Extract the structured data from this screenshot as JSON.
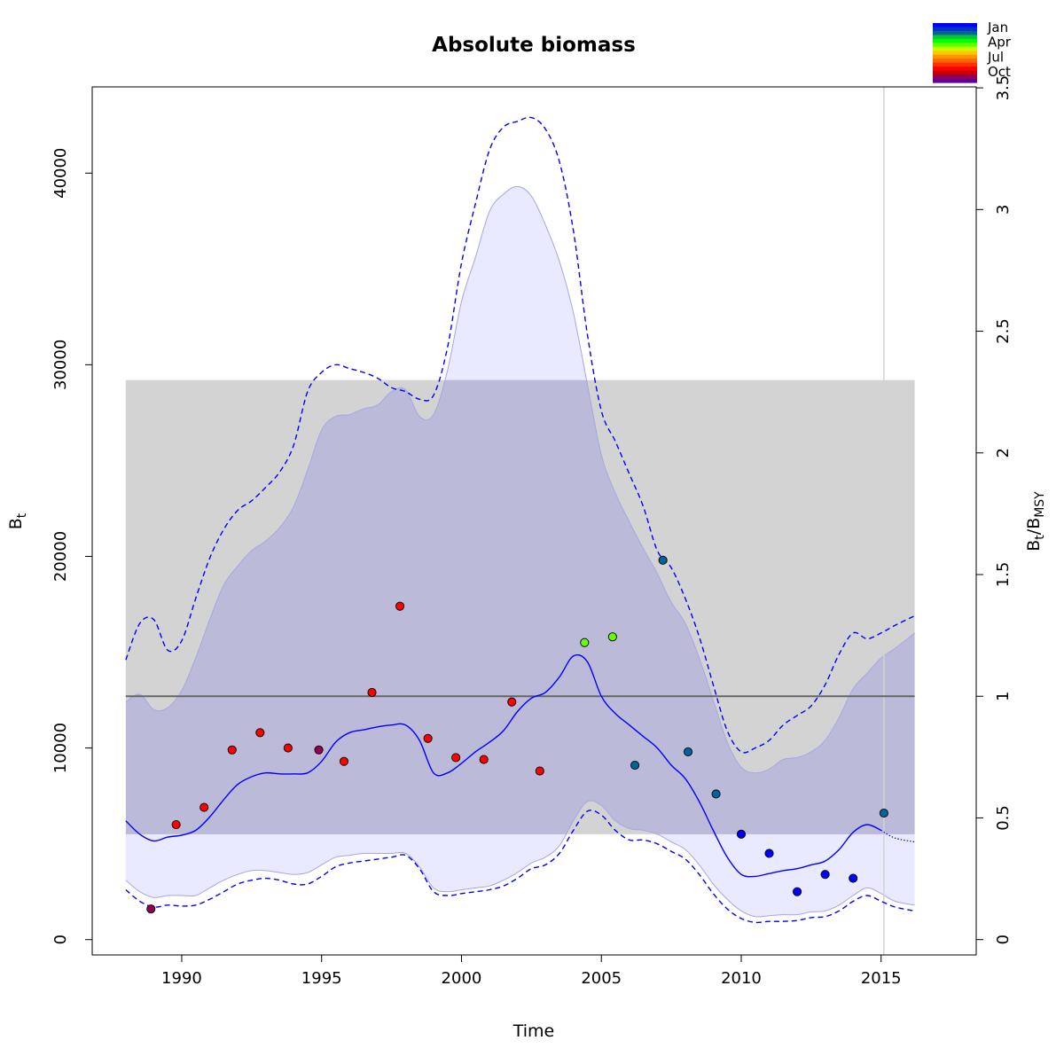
{
  "chart_data": {
    "type": "line",
    "title": "Absolute biomass",
    "xlabel": "Time",
    "ylabel": "B",
    "ylabel_sub": "t",
    "y2label": "B",
    "y2label_sub": "t/MSY",
    "y2label_sub_a": "t",
    "y2label_mid": "/B",
    "y2label_sub_b": "MSY",
    "xlim": [
      1986.8,
      2018.4
    ],
    "ylim": [
      -800,
      44500
    ],
    "x_ticks": [
      1990,
      1995,
      2000,
      2005,
      2010,
      2015
    ],
    "x_tick_labels": [
      "1990",
      "1995",
      "2000",
      "2005",
      "2010",
      "2015"
    ],
    "y_ticks": [
      0,
      10000,
      20000,
      30000,
      40000
    ],
    "y_tick_labels": [
      "0",
      "10000",
      "20000",
      "30000",
      "40000"
    ],
    "y2_ticks": [
      0,
      0.5,
      1,
      1.5,
      2,
      2.5,
      3,
      3.5
    ],
    "y2_tick_labels": [
      "0",
      "0.5",
      "1",
      "1.5",
      "2",
      "2.5",
      "3",
      "3.5"
    ],
    "bmsy": 12700,
    "bmsy_ci": [
      5500,
      29200
    ],
    "bmsy_band_x": [
      1988,
      2016.2
    ],
    "vertical_line_x": 2015.1,
    "legend": {
      "position": "top-right",
      "labels": [
        "Jan",
        "Apr",
        "Jul",
        "Oct"
      ],
      "colors": [
        "#0000FF",
        "#0032C8",
        "#006496",
        "#00C832",
        "#00FF00",
        "#64FF00",
        "#C8FF00",
        "#FFC800",
        "#FF9600",
        "#FF6400",
        "#FF3200",
        "#FF0000",
        "#C80000",
        "#960050",
        "#640096"
      ]
    },
    "colors": {
      "estimate": "#0000FF",
      "ci_fill": "#E2E2FF",
      "ci_border": "#A6A6E8",
      "overlap_fill": "#BBBBD9",
      "band_fill": "#D3D3D3",
      "ref_line": "#666666",
      "vline": "#D3D3D3"
    },
    "series": [
      {
        "name": "estimate",
        "x": [
          1988,
          1988.5,
          1989,
          1989.5,
          1990,
          1990.5,
          1991,
          1991.5,
          1992,
          1992.5,
          1993,
          1993.5,
          1994,
          1994.5,
          1995,
          1995.5,
          1996,
          1996.5,
          1997,
          1997.5,
          1998,
          1998.5,
          1999,
          1999.5,
          2000,
          2000.5,
          2001,
          2001.5,
          2002,
          2002.5,
          2003,
          2003.5,
          2004,
          2004.5,
          2005,
          2005.5,
          2006,
          2006.5,
          2007,
          2007.5,
          2008,
          2008.5,
          2009,
          2009.5,
          2010,
          2010.5,
          2011,
          2011.5,
          2012,
          2012.5,
          2013,
          2013.5,
          2014,
          2014.5,
          2015
        ],
        "y": [
          6200,
          5500,
          5150,
          5350,
          5450,
          5700,
          6400,
          7300,
          8100,
          8500,
          8700,
          8650,
          8650,
          8700,
          9300,
          10300,
          10800,
          10950,
          11100,
          11200,
          11200,
          10400,
          8700,
          8700,
          9200,
          9800,
          10300,
          10900,
          11900,
          12600,
          12900,
          13700,
          14800,
          14500,
          12700,
          11800,
          11200,
          10600,
          10000,
          9100,
          8400,
          7200,
          5700,
          4300,
          3400,
          3300,
          3450,
          3600,
          3700,
          3900,
          4100,
          4700,
          5600,
          6000,
          5700
        ]
      },
      {
        "name": "forecast",
        "x": [
          2015,
          2015.5,
          2016.2
        ],
        "y": [
          5700,
          5300,
          5100
        ]
      },
      {
        "name": "upper",
        "x": [
          1988,
          1988.5,
          1989,
          1989.5,
          1990,
          1990.5,
          1991,
          1991.5,
          1992,
          1992.5,
          1993,
          1993.5,
          1994,
          1994.5,
          1995,
          1995.5,
          1996,
          1996.5,
          1997,
          1997.5,
          1998,
          1998.5,
          1999,
          1999.5,
          2000,
          2000.5,
          2001,
          2001.5,
          2002,
          2002.5,
          2003,
          2003.5,
          2004,
          2004.5,
          2005,
          2005.5,
          2006,
          2006.5,
          2007,
          2007.5,
          2008,
          2008.5,
          2009,
          2009.5,
          2010,
          2010.5,
          2011,
          2011.5,
          2012,
          2012.5,
          2013,
          2013.5,
          2014,
          2014.5,
          2015,
          2015.5,
          2016.2
        ],
        "y": [
          14600,
          16500,
          16700,
          15100,
          15600,
          17800,
          19900,
          21400,
          22400,
          22900,
          23600,
          24400,
          25800,
          28600,
          29600,
          30000,
          29800,
          29600,
          29300,
          28800,
          28600,
          28200,
          28400,
          30900,
          35300,
          38400,
          41200,
          42400,
          42700,
          42900,
          42300,
          40600,
          37000,
          31600,
          27600,
          26000,
          24300,
          22600,
          20300,
          19400,
          17800,
          15800,
          13300,
          10900,
          9800,
          10000,
          10400,
          11200,
          11700,
          12200,
          13300,
          14900,
          16000,
          15700,
          16000,
          16400,
          16900
        ]
      },
      {
        "name": "lower",
        "x": [
          1988,
          1988.5,
          1989,
          1989.5,
          1990,
          1990.5,
          1991,
          1991.5,
          1992,
          1992.5,
          1993,
          1993.5,
          1994,
          1994.5,
          1995,
          1995.5,
          1996,
          1996.5,
          1997,
          1997.5,
          1998,
          1998.5,
          1999,
          1999.5,
          2000,
          2000.5,
          2001,
          2001.5,
          2002,
          2002.5,
          2003,
          2003.5,
          2004,
          2004.5,
          2005,
          2005.5,
          2006,
          2006.5,
          2007,
          2007.5,
          2008,
          2008.5,
          2009,
          2009.5,
          2010,
          2010.5,
          2011,
          2011.5,
          2012,
          2012.5,
          2013,
          2013.5,
          2014,
          2014.5,
          2015,
          2015.5,
          2016.2
        ],
        "y": [
          2600,
          2000,
          1700,
          1800,
          1750,
          1800,
          2100,
          2500,
          2900,
          3100,
          3200,
          3100,
          2900,
          2900,
          3300,
          3800,
          4000,
          4100,
          4200,
          4300,
          4400,
          3700,
          2500,
          2300,
          2400,
          2500,
          2600,
          2800,
          3200,
          3700,
          3900,
          4500,
          5700,
          6700,
          6500,
          5700,
          5200,
          5200,
          5000,
          4600,
          4200,
          3400,
          2400,
          1600,
          1100,
          900,
          950,
          950,
          1000,
          1150,
          1200,
          1500,
          2000,
          2300,
          2000,
          1700,
          1500
        ]
      },
      {
        "name": "ci_fill_upper",
        "x": [
          1988,
          1988.5,
          1989,
          1989.5,
          1990,
          1990.5,
          1991,
          1991.5,
          1992,
          1992.5,
          1993,
          1993.5,
          1994,
          1994.5,
          1995,
          1995.5,
          1996,
          1996.5,
          1997,
          1997.5,
          1998,
          1998.5,
          1999,
          1999.5,
          2000,
          2000.5,
          2001,
          2001.5,
          2002,
          2002.5,
          2003,
          2003.5,
          2004,
          2004.5,
          2005,
          2005.5,
          2006,
          2006.5,
          2007,
          2007.5,
          2008,
          2008.5,
          2009,
          2009.5,
          2010,
          2010.5,
          2011,
          2011.5,
          2012,
          2012.5,
          2013,
          2013.5,
          2014,
          2014.5,
          2015,
          2015.5,
          2016.2
        ],
        "y": [
          12400,
          12800,
          12000,
          12100,
          13000,
          14700,
          16700,
          18500,
          19500,
          20300,
          20800,
          21500,
          22600,
          24500,
          26600,
          27300,
          27400,
          27700,
          27900,
          28600,
          28700,
          27300,
          27400,
          29700,
          33300,
          35600,
          38000,
          38900,
          39300,
          38800,
          37300,
          35400,
          32700,
          29000,
          25300,
          23300,
          21800,
          20400,
          19100,
          17600,
          16500,
          14700,
          12500,
          10300,
          9000,
          8700,
          8900,
          9400,
          9500,
          9800,
          10400,
          11600,
          13100,
          13900,
          14700,
          15200,
          16000
        ]
      },
      {
        "name": "ci_fill_lower",
        "x": [
          1988,
          1988.5,
          1989,
          1989.5,
          1990,
          1990.5,
          1991,
          1991.5,
          1992,
          1992.5,
          1993,
          1993.5,
          1994,
          1994.5,
          1995,
          1995.5,
          1996,
          1996.5,
          1997,
          1997.5,
          1998,
          1998.5,
          1999,
          1999.5,
          2000,
          2000.5,
          2001,
          2001.5,
          2002,
          2002.5,
          2003,
          2003.5,
          2004,
          2004.5,
          2005,
          2005.5,
          2006,
          2006.5,
          2007,
          2007.5,
          2008,
          2008.5,
          2009,
          2009.5,
          2010,
          2010.5,
          2011,
          2011.5,
          2012,
          2012.5,
          2013,
          2013.5,
          2014,
          2014.5,
          2015,
          2015.5,
          2016.2
        ],
        "y": [
          3100,
          2500,
          2200,
          2300,
          2300,
          2300,
          2700,
          3100,
          3400,
          3600,
          3600,
          3500,
          3400,
          3500,
          3900,
          4300,
          4400,
          4500,
          4500,
          4500,
          4500,
          3800,
          2700,
          2500,
          2600,
          2700,
          2800,
          3100,
          3500,
          4000,
          4300,
          4900,
          6200,
          7200,
          7000,
          6200,
          5800,
          5700,
          5500,
          5100,
          4700,
          3900,
          2900,
          2100,
          1500,
          1200,
          1250,
          1300,
          1300,
          1450,
          1500,
          1800,
          2300,
          2700,
          2400,
          2000,
          1800
        ]
      }
    ],
    "observations": {
      "x": [
        1988.9,
        1989.8,
        1990.8,
        1991.8,
        1992.8,
        1993.8,
        1994.9,
        1995.8,
        1996.8,
        1997.8,
        1998.8,
        1999.8,
        2000.8,
        2001.8,
        2002.8,
        2004.4,
        2005.4,
        2006.2,
        2007.2,
        2008.1,
        2009.1,
        2010.0,
        2011.0,
        2012.0,
        2013.0,
        2014.0,
        2015.1
      ],
      "y": [
        1600,
        6000,
        6900,
        9900,
        10800,
        10000,
        9900,
        9300,
        12900,
        17400,
        10500,
        9500,
        9400,
        12400,
        8800,
        15500,
        15800,
        9100,
        19800,
        9800,
        7600,
        5500,
        4500,
        2500,
        3400,
        3200,
        6600
      ],
      "colors": [
        "#960050",
        "#FF0000",
        "#FF0000",
        "#FF0000",
        "#FF0000",
        "#FF0000",
        "#960050",
        "#FF0000",
        "#FF0000",
        "#FF0000",
        "#FF0000",
        "#FF0000",
        "#FF0000",
        "#FF0000",
        "#FF0000",
        "#64FF00",
        "#64FF00",
        "#006496",
        "#006496",
        "#006496",
        "#006496",
        "#0000FF",
        "#0000FF",
        "#0000FF",
        "#0000FF",
        "#0000FF",
        "#006496"
      ]
    }
  }
}
